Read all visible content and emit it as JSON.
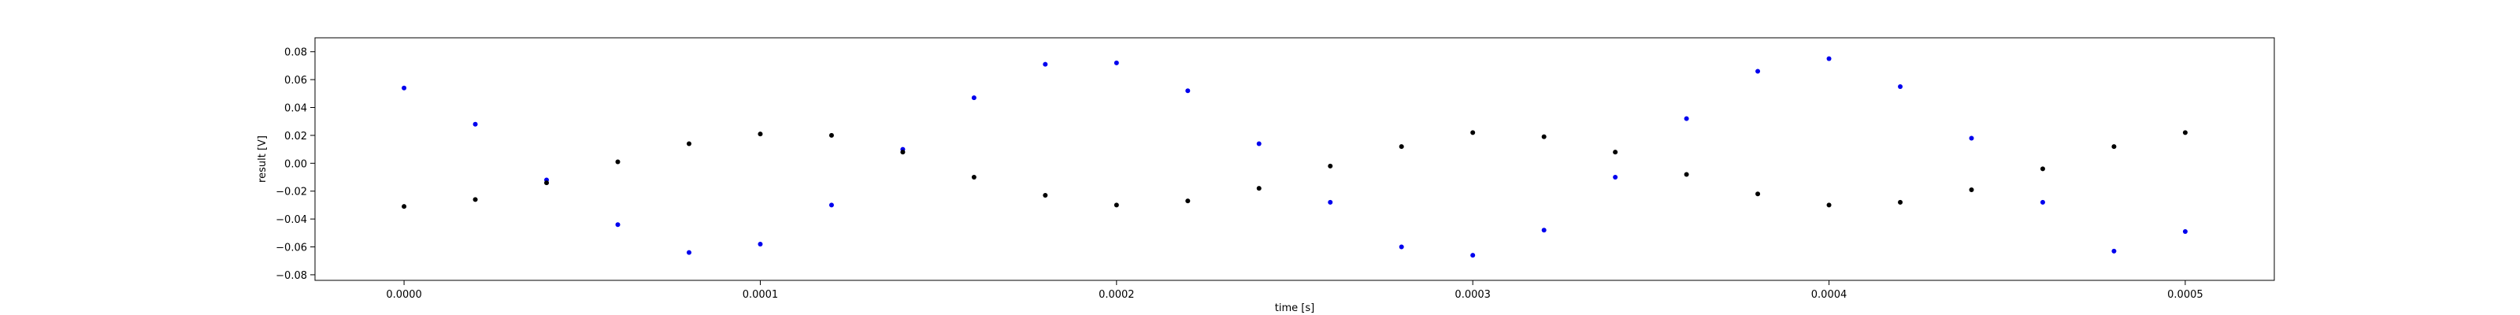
{
  "chart_data": {
    "type": "scatter",
    "title": "",
    "xlabel": "time [s]",
    "ylabel": "result [V]",
    "xlim": [
      -2.5e-05,
      0.000525
    ],
    "ylim": [
      -0.084,
      0.09
    ],
    "grid": false,
    "legend": "none",
    "x_ticks": [
      {
        "value": 0.0,
        "label": "0.0000"
      },
      {
        "value": 0.0001,
        "label": "0.0001"
      },
      {
        "value": 0.0002,
        "label": "0.0002"
      },
      {
        "value": 0.0003,
        "label": "0.0003"
      },
      {
        "value": 0.0004,
        "label": "0.0004"
      },
      {
        "value": 0.0005,
        "label": "0.0005"
      }
    ],
    "y_ticks": [
      {
        "value": -0.08,
        "label": "−0.08"
      },
      {
        "value": -0.06,
        "label": "−0.06"
      },
      {
        "value": -0.04,
        "label": "−0.04"
      },
      {
        "value": -0.02,
        "label": "−0.02"
      },
      {
        "value": 0.0,
        "label": "0.00"
      },
      {
        "value": 0.02,
        "label": "0.02"
      },
      {
        "value": 0.04,
        "label": "0.04"
      },
      {
        "value": 0.06,
        "label": "0.06"
      },
      {
        "value": 0.08,
        "label": "0.08"
      }
    ],
    "series": [
      {
        "color": "#0000ee",
        "marker": "dot",
        "x": [
          0.0,
          2e-05,
          4e-05,
          6e-05,
          8e-05,
          0.0001,
          0.00012,
          0.00014,
          0.00016,
          0.00018,
          0.0002,
          0.00022,
          0.00024,
          0.00026,
          0.00028,
          0.0003,
          0.00032,
          0.00034,
          0.00036,
          0.00038,
          0.0004,
          0.00042,
          0.00044,
          0.00046,
          0.00048,
          0.0005
        ],
        "y": [
          0.054,
          0.028,
          -0.012,
          -0.044,
          -0.064,
          -0.058,
          -0.03,
          0.01,
          0.047,
          0.071,
          0.072,
          0.052,
          0.014,
          -0.028,
          -0.06,
          -0.066,
          -0.048,
          -0.01,
          0.032,
          0.066,
          0.075,
          0.055,
          0.018,
          -0.028,
          -0.063,
          -0.049
        ]
      },
      {
        "color": "#000000",
        "marker": "dot",
        "x": [
          0.0,
          2e-05,
          4e-05,
          6e-05,
          8e-05,
          0.0001,
          0.00012,
          0.00014,
          0.00016,
          0.00018,
          0.0002,
          0.00022,
          0.00024,
          0.00026,
          0.00028,
          0.0003,
          0.00032,
          0.00034,
          0.00036,
          0.00038,
          0.0004,
          0.00042,
          0.00044,
          0.00046,
          0.00048,
          0.0005
        ],
        "y": [
          -0.031,
          -0.026,
          -0.014,
          0.001,
          0.014,
          0.021,
          0.02,
          0.008,
          -0.01,
          -0.023,
          -0.03,
          -0.027,
          -0.018,
          -0.002,
          0.012,
          0.022,
          0.019,
          0.008,
          -0.008,
          -0.022,
          -0.03,
          -0.028,
          -0.019,
          -0.004,
          0.012,
          0.022
        ]
      }
    ]
  }
}
